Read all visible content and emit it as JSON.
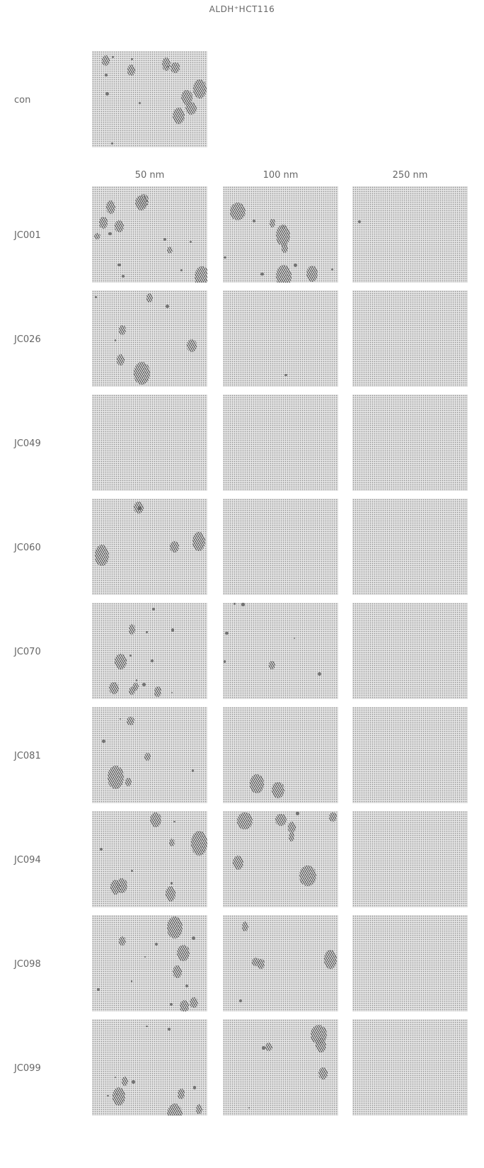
{
  "figure": {
    "title": "ALDH⁺HCT116",
    "control_label": "con",
    "concentration_headers": [
      "50 nm",
      "100 nm",
      "250 nm"
    ],
    "rows": [
      {
        "label": "JC001"
      },
      {
        "label": "JC026"
      },
      {
        "label": "JC049"
      },
      {
        "label": "JC060"
      },
      {
        "label": "JC070"
      },
      {
        "label": "JC081"
      },
      {
        "label": "JC094"
      },
      {
        "label": "JC098"
      },
      {
        "label": "JC099"
      }
    ]
  }
}
